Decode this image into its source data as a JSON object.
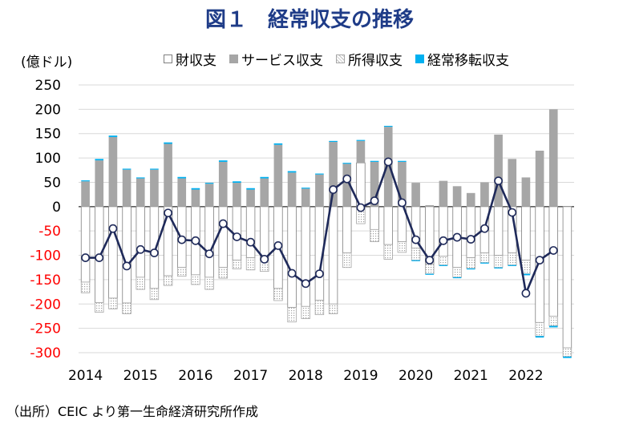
{
  "title": "図１　経常収支の推移",
  "unit_label": "(億ドル)",
  "source": "（出所）CEIC より第一生命経済研究所作成",
  "colors": {
    "goods": "#ffffff",
    "services": "#a6a6a6",
    "income": "#d9d9d9",
    "transfers": "#00b0f0",
    "line": "#1f2a5a",
    "title": "#1f3c88",
    "negative_tick": "#ff0000"
  },
  "legend": [
    {
      "key": "goods",
      "label": "財収支"
    },
    {
      "key": "services",
      "label": "サービス収支"
    },
    {
      "key": "income",
      "label": "所得収支"
    },
    {
      "key": "transfers",
      "label": "経常移転収支"
    }
  ],
  "chart_data": {
    "type": "bar",
    "stacked": true,
    "frequency": "quarterly",
    "x_tick_labels": [
      "2014",
      "2015",
      "2016",
      "2017",
      "2018",
      "2019",
      "2020",
      "2021",
      "2022"
    ],
    "ylim": [
      -300,
      250
    ],
    "yticks": [
      250,
      200,
      150,
      100,
      50,
      0,
      -50,
      -100,
      -150,
      -200,
      -250,
      -300
    ],
    "grid": true,
    "legend_position": "top",
    "series": [
      {
        "name": "財収支",
        "key": "goods",
        "values": [
          -155,
          -197,
          -188,
          -198,
          -145,
          -168,
          -142,
          -125,
          -140,
          -145,
          -125,
          -110,
          -105,
          -105,
          -168,
          -207,
          -205,
          -192,
          -200,
          -95,
          90,
          -47,
          -78,
          -72,
          -85,
          -118,
          -102,
          -125,
          -105,
          -95,
          -100,
          -95,
          -110,
          -238,
          -225,
          -290
        ]
      },
      {
        "name": "サービス収支",
        "key": "services",
        "values": [
          52,
          95,
          143,
          76,
          58,
          76,
          129,
          58,
          35,
          47,
          92,
          49,
          35,
          58,
          127,
          70,
          37,
          66,
          133,
          88,
          45,
          92,
          164,
          92,
          49,
          3,
          53,
          42,
          28,
          50,
          148,
          98,
          60,
          115,
          200,
          0
        ]
      },
      {
        "name": "所得収支",
        "key": "income",
        "values": [
          -22,
          -20,
          -22,
          -22,
          -25,
          -23,
          -20,
          -18,
          -20,
          -25,
          -22,
          -18,
          -25,
          -28,
          -25,
          -30,
          -25,
          -30,
          -20,
          -30,
          -35,
          -25,
          -30,
          -22,
          -25,
          -20,
          -18,
          -20,
          -22,
          -20,
          -25,
          -25,
          -28,
          -28,
          -20,
          -18
        ]
      },
      {
        "name": "経常移転収支",
        "key": "transfers",
        "values": [
          2,
          3,
          3,
          2,
          2,
          2,
          3,
          3,
          3,
          2,
          3,
          3,
          3,
          3,
          3,
          3,
          2,
          2,
          2,
          2,
          2,
          2,
          2,
          2,
          -2,
          -2,
          -2,
          -2,
          -2,
          -2,
          -2,
          -2,
          -3,
          -3,
          -3,
          -3
        ]
      },
      {
        "name": "経常収支",
        "key": "current",
        "kind": "line",
        "values": [
          -105,
          -105,
          -45,
          -122,
          -88,
          -95,
          -13,
          -68,
          -70,
          -97,
          -35,
          -62,
          -73,
          -108,
          -80,
          -137,
          -158,
          -138,
          35,
          57,
          -2,
          12,
          92,
          8,
          -68,
          -110,
          -70,
          -63,
          -67,
          -45,
          53,
          -12,
          -178,
          -110,
          -90,
          null
        ]
      }
    ]
  }
}
